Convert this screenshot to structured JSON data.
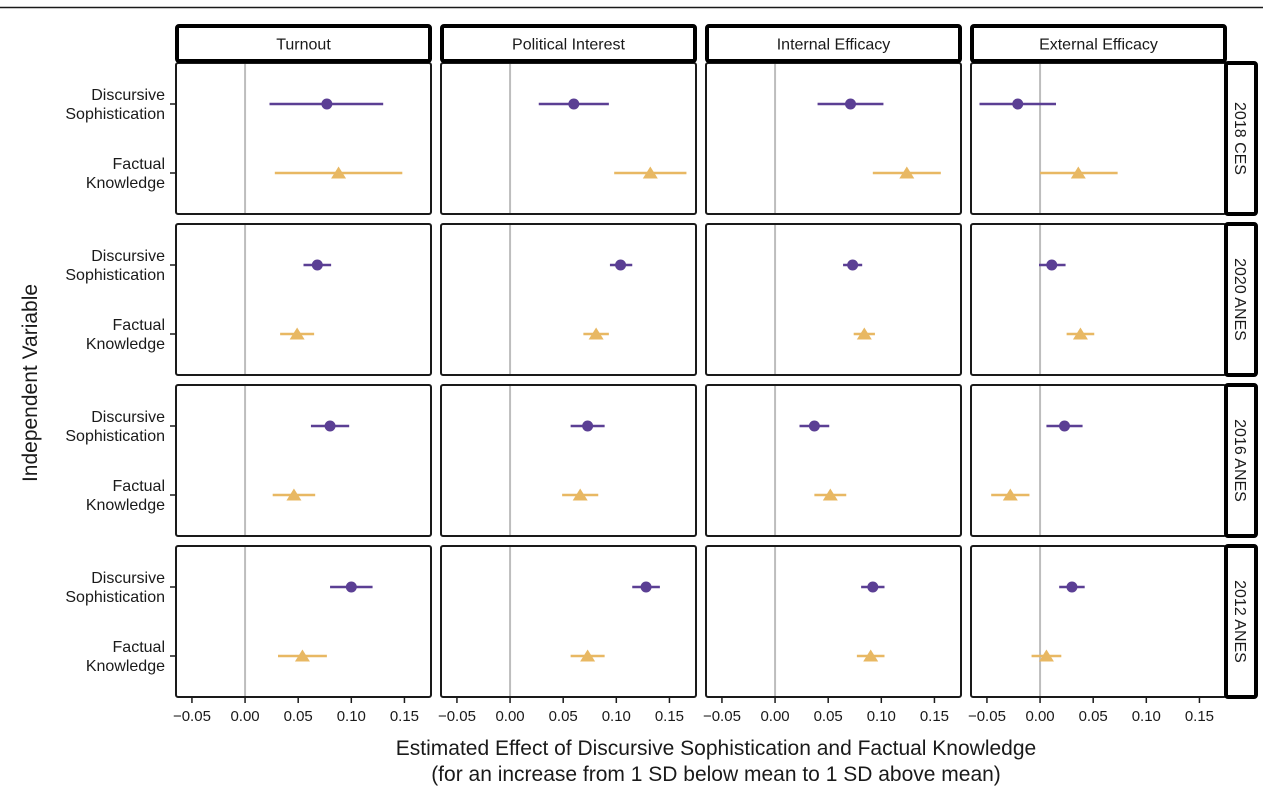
{
  "chart_data": {
    "type": "scatter",
    "subtype": "faceted coefficient plot with horizontal confidence intervals",
    "facet_columns": [
      "Turnout",
      "Political Interest",
      "Internal Efficacy",
      "External Efficacy"
    ],
    "facet_rows": [
      "2018 CES",
      "2020 ANES",
      "2016 ANES",
      "2012 ANES"
    ],
    "categories": [
      "Discursive Sophistication",
      "Factual Knowledge"
    ],
    "category_labels": [
      [
        "Discursive",
        "Sophistication"
      ],
      [
        "Factual",
        "Knowledge"
      ]
    ],
    "xlabel": "Estimated Effect of Discursive Sophistication and Factual Knowledge",
    "xlabel_line2": "(for an increase from 1 SD below mean to 1 SD above mean)",
    "ylabel": "Independent Variable",
    "xlim": [
      -0.065,
      0.175
    ],
    "x_ticks": [
      -0.05,
      0.0,
      0.05,
      0.1,
      0.15
    ],
    "x_tick_labels": [
      "−0.05",
      "0.00",
      "0.05",
      "0.10",
      "0.15"
    ],
    "reference_line": 0,
    "grid": false,
    "legend": "none",
    "colors": {
      "Discursive Sophistication": "#5b3f94",
      "Factual Knowledge": "#e8b863",
      "reference_line": "#bdbdbd"
    },
    "markers": {
      "Discursive Sophistication": "circle",
      "Factual Knowledge": "triangle"
    },
    "series": [
      {
        "name": "Discursive Sophistication",
        "points": [
          {
            "row": "2018 CES",
            "col": "Turnout",
            "estimate": 0.077,
            "lower": 0.023,
            "upper": 0.13
          },
          {
            "row": "2018 CES",
            "col": "Political Interest",
            "estimate": 0.06,
            "lower": 0.027,
            "upper": 0.093
          },
          {
            "row": "2018 CES",
            "col": "Internal Efficacy",
            "estimate": 0.071,
            "lower": 0.04,
            "upper": 0.102
          },
          {
            "row": "2018 CES",
            "col": "External Efficacy",
            "estimate": -0.021,
            "lower": -0.057,
            "upper": 0.015
          },
          {
            "row": "2020 ANES",
            "col": "Turnout",
            "estimate": 0.068,
            "lower": 0.055,
            "upper": 0.081
          },
          {
            "row": "2020 ANES",
            "col": "Political Interest",
            "estimate": 0.104,
            "lower": 0.094,
            "upper": 0.115
          },
          {
            "row": "2020 ANES",
            "col": "Internal Efficacy",
            "estimate": 0.073,
            "lower": 0.064,
            "upper": 0.082
          },
          {
            "row": "2020 ANES",
            "col": "External Efficacy",
            "estimate": 0.011,
            "lower": -0.001,
            "upper": 0.024
          },
          {
            "row": "2016 ANES",
            "col": "Turnout",
            "estimate": 0.08,
            "lower": 0.062,
            "upper": 0.098
          },
          {
            "row": "2016 ANES",
            "col": "Political Interest",
            "estimate": 0.073,
            "lower": 0.057,
            "upper": 0.089
          },
          {
            "row": "2016 ANES",
            "col": "Internal Efficacy",
            "estimate": 0.037,
            "lower": 0.023,
            "upper": 0.051
          },
          {
            "row": "2016 ANES",
            "col": "External Efficacy",
            "estimate": 0.023,
            "lower": 0.006,
            "upper": 0.04
          },
          {
            "row": "2012 ANES",
            "col": "Turnout",
            "estimate": 0.1,
            "lower": 0.08,
            "upper": 0.12
          },
          {
            "row": "2012 ANES",
            "col": "Political Interest",
            "estimate": 0.128,
            "lower": 0.115,
            "upper": 0.141
          },
          {
            "row": "2012 ANES",
            "col": "Internal Efficacy",
            "estimate": 0.092,
            "lower": 0.081,
            "upper": 0.103
          },
          {
            "row": "2012 ANES",
            "col": "External Efficacy",
            "estimate": 0.03,
            "lower": 0.018,
            "upper": 0.042
          }
        ]
      },
      {
        "name": "Factual Knowledge",
        "points": [
          {
            "row": "2018 CES",
            "col": "Turnout",
            "estimate": 0.088,
            "lower": 0.028,
            "upper": 0.148
          },
          {
            "row": "2018 CES",
            "col": "Political Interest",
            "estimate": 0.132,
            "lower": 0.098,
            "upper": 0.166
          },
          {
            "row": "2018 CES",
            "col": "Internal Efficacy",
            "estimate": 0.124,
            "lower": 0.092,
            "upper": 0.156
          },
          {
            "row": "2018 CES",
            "col": "External Efficacy",
            "estimate": 0.036,
            "lower": 0.0,
            "upper": 0.073
          },
          {
            "row": "2020 ANES",
            "col": "Turnout",
            "estimate": 0.049,
            "lower": 0.033,
            "upper": 0.065
          },
          {
            "row": "2020 ANES",
            "col": "Political Interest",
            "estimate": 0.081,
            "lower": 0.069,
            "upper": 0.093
          },
          {
            "row": "2020 ANES",
            "col": "Internal Efficacy",
            "estimate": 0.084,
            "lower": 0.074,
            "upper": 0.094
          },
          {
            "row": "2020 ANES",
            "col": "External Efficacy",
            "estimate": 0.038,
            "lower": 0.025,
            "upper": 0.051
          },
          {
            "row": "2016 ANES",
            "col": "Turnout",
            "estimate": 0.046,
            "lower": 0.026,
            "upper": 0.066
          },
          {
            "row": "2016 ANES",
            "col": "Political Interest",
            "estimate": 0.066,
            "lower": 0.049,
            "upper": 0.083
          },
          {
            "row": "2016 ANES",
            "col": "Internal Efficacy",
            "estimate": 0.052,
            "lower": 0.037,
            "upper": 0.067
          },
          {
            "row": "2016 ANES",
            "col": "External Efficacy",
            "estimate": -0.028,
            "lower": -0.046,
            "upper": -0.01
          },
          {
            "row": "2012 ANES",
            "col": "Turnout",
            "estimate": 0.054,
            "lower": 0.031,
            "upper": 0.077
          },
          {
            "row": "2012 ANES",
            "col": "Political Interest",
            "estimate": 0.073,
            "lower": 0.057,
            "upper": 0.089
          },
          {
            "row": "2012 ANES",
            "col": "Internal Efficacy",
            "estimate": 0.09,
            "lower": 0.077,
            "upper": 0.103
          },
          {
            "row": "2012 ANES",
            "col": "External Efficacy",
            "estimate": 0.006,
            "lower": -0.008,
            "upper": 0.02
          }
        ]
      }
    ]
  }
}
